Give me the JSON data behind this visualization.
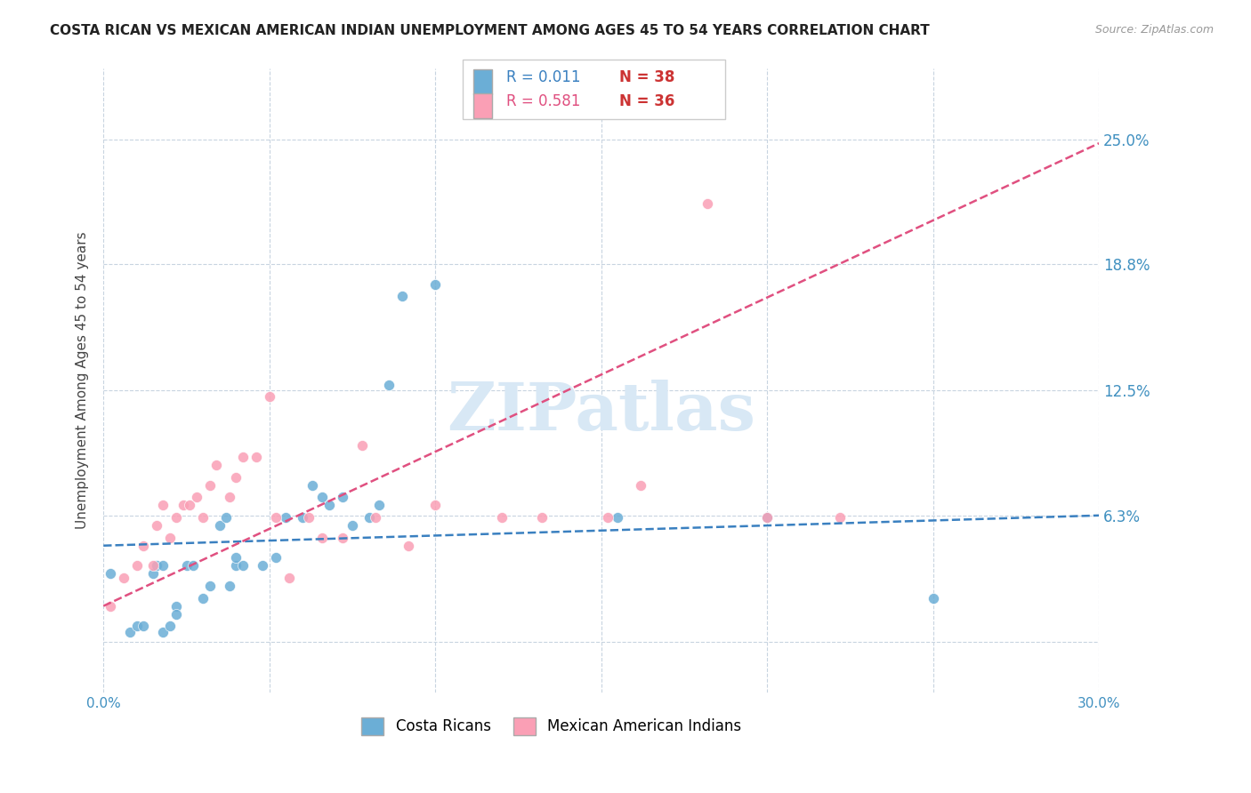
{
  "title": "COSTA RICAN VS MEXICAN AMERICAN INDIAN UNEMPLOYMENT AMONG AGES 45 TO 54 YEARS CORRELATION CHART",
  "source": "Source: ZipAtlas.com",
  "ylabel": "Unemployment Among Ages 45 to 54 years",
  "xlim": [
    0.0,
    0.3
  ],
  "ylim": [
    -0.025,
    0.285
  ],
  "yticks": [
    0.0,
    0.063,
    0.125,
    0.188,
    0.25
  ],
  "ytick_labels": [
    "",
    "6.3%",
    "12.5%",
    "18.8%",
    "25.0%"
  ],
  "xticks": [
    0.0,
    0.05,
    0.1,
    0.15,
    0.2,
    0.25,
    0.3
  ],
  "xtick_labels": [
    "0.0%",
    "",
    "",
    "",
    "",
    "",
    "30.0%"
  ],
  "legend_r1": "R = 0.011",
  "legend_n1": "N = 38",
  "legend_r2": "R = 0.581",
  "legend_n2": "N = 36",
  "color_blue": "#6baed6",
  "color_pink": "#fa9fb5",
  "color_blue_dark": "#3a80c0",
  "color_pink_dark": "#e05080",
  "color_n": "#cc3333",
  "trend_blue_color": "#3a80c0",
  "trend_pink_color": "#e05080",
  "watermark_text": "ZIPatlas",
  "watermark_color": "#d8e8f5",
  "blue_scatter_x": [
    0.002,
    0.008,
    0.01,
    0.012,
    0.015,
    0.016,
    0.018,
    0.018,
    0.02,
    0.022,
    0.022,
    0.025,
    0.027,
    0.03,
    0.032,
    0.035,
    0.037,
    0.038,
    0.04,
    0.04,
    0.042,
    0.048,
    0.052,
    0.055,
    0.06,
    0.063,
    0.066,
    0.068,
    0.072,
    0.075,
    0.08,
    0.083,
    0.086,
    0.09,
    0.1,
    0.155,
    0.2,
    0.25
  ],
  "blue_scatter_y": [
    0.034,
    0.005,
    0.008,
    0.008,
    0.034,
    0.038,
    0.038,
    0.005,
    0.008,
    0.018,
    0.014,
    0.038,
    0.038,
    0.022,
    0.028,
    0.058,
    0.062,
    0.028,
    0.038,
    0.042,
    0.038,
    0.038,
    0.042,
    0.062,
    0.062,
    0.078,
    0.072,
    0.068,
    0.072,
    0.058,
    0.062,
    0.068,
    0.128,
    0.172,
    0.178,
    0.062,
    0.062,
    0.022
  ],
  "pink_scatter_x": [
    0.002,
    0.006,
    0.01,
    0.012,
    0.015,
    0.016,
    0.018,
    0.02,
    0.022,
    0.024,
    0.026,
    0.028,
    0.03,
    0.032,
    0.034,
    0.038,
    0.04,
    0.042,
    0.046,
    0.05,
    0.052,
    0.056,
    0.062,
    0.066,
    0.072,
    0.078,
    0.082,
    0.092,
    0.1,
    0.12,
    0.132,
    0.152,
    0.162,
    0.182,
    0.2,
    0.222
  ],
  "pink_scatter_y": [
    0.018,
    0.032,
    0.038,
    0.048,
    0.038,
    0.058,
    0.068,
    0.052,
    0.062,
    0.068,
    0.068,
    0.072,
    0.062,
    0.078,
    0.088,
    0.072,
    0.082,
    0.092,
    0.092,
    0.122,
    0.062,
    0.032,
    0.062,
    0.052,
    0.052,
    0.098,
    0.062,
    0.048,
    0.068,
    0.062,
    0.062,
    0.062,
    0.078,
    0.218,
    0.062,
    0.062
  ],
  "blue_trend_x": [
    0.0,
    0.3
  ],
  "blue_trend_y": [
    0.048,
    0.063
  ],
  "pink_trend_x": [
    0.0,
    0.3
  ],
  "pink_trend_y": [
    0.018,
    0.248
  ],
  "grid_color": "#c8d4e0",
  "axis_tick_color": "#4090c0",
  "ylabel_color": "#444444",
  "background_color": "#ffffff"
}
